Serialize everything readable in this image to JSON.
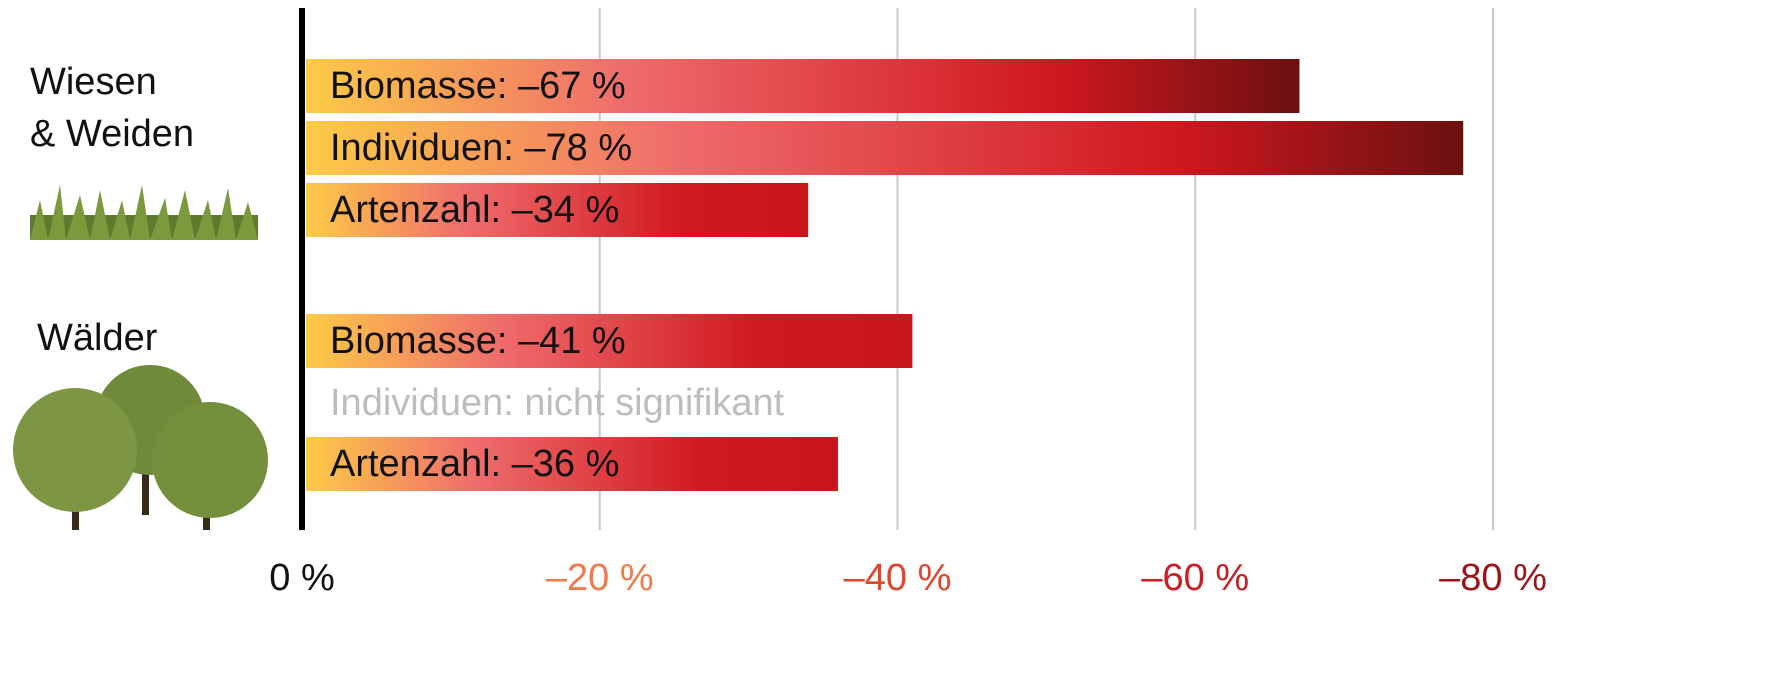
{
  "chart_data": {
    "type": "bar",
    "orientation": "horizontal",
    "groups": [
      {
        "name": "Wiesen\n& Weiden",
        "value_labels": [
          "Biomasse: –67 %",
          "Individuen: –78 %",
          "Artenzahl: –34 %"
        ],
        "values": [
          -67,
          -78,
          -34
        ]
      },
      {
        "name": "Wälder",
        "value_labels": [
          "Biomasse: –41 %",
          "Individuen: nicht signifikant",
          "Artenzahl: –36 %"
        ],
        "values": [
          -41,
          null,
          -36
        ]
      }
    ],
    "xlim": [
      0,
      -80
    ],
    "xticks": [
      {
        "value": 0,
        "label": "0 %"
      },
      {
        "value": -20,
        "label": "–20 %"
      },
      {
        "value": -40,
        "label": "–40 %"
      },
      {
        "value": -60,
        "label": "–60 %"
      },
      {
        "value": -80,
        "label": "–80 %"
      }
    ],
    "xtick_colors": [
      "#111111",
      "#f07a4a",
      "#e0462a",
      "#c81e24",
      "#9a1418"
    ],
    "grid": true
  }
}
